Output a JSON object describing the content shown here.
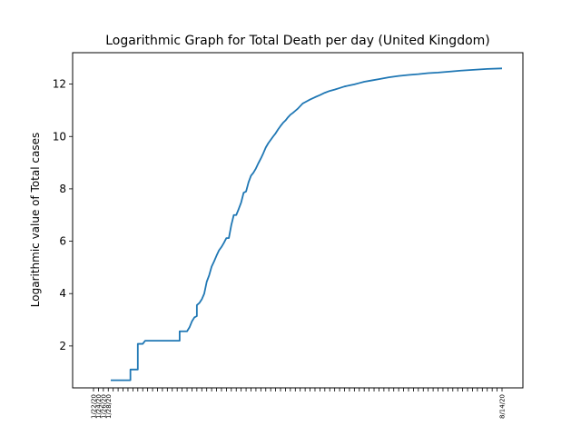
{
  "chart_data": {
    "type": "line",
    "title": "Logarithmic Graph for Total Death per day (United Kingdom)",
    "xlabel": "",
    "ylabel": "Logarithmic value of Total cases",
    "ylim": [
      0.4,
      13.2
    ],
    "yticks": [
      2,
      4,
      6,
      8,
      10,
      12
    ],
    "grid": false,
    "color": "#1f77b4",
    "x_start_index": 0,
    "x_end_index": 166,
    "x_tick_every": 2,
    "x_tick_labels_legible": [
      "1/22/20",
      "1/24/20",
      "1/26/20",
      "1/28/20",
      "8/14/20"
    ],
    "series": [
      {
        "points": [
          [
            7,
            0.69
          ],
          [
            15,
            0.69
          ],
          [
            15,
            1.1
          ],
          [
            18,
            1.1
          ],
          [
            18,
            2.08
          ],
          [
            20,
            2.08
          ],
          [
            21,
            2.2
          ],
          [
            35,
            2.2
          ],
          [
            35,
            2.56
          ],
          [
            38,
            2.56
          ],
          [
            39,
            2.71
          ],
          [
            40,
            2.94
          ],
          [
            41,
            3.09
          ],
          [
            42,
            3.14
          ],
          [
            42,
            3.56
          ],
          [
            43,
            3.64
          ],
          [
            44,
            3.78
          ],
          [
            45,
            4.0
          ],
          [
            46,
            4.45
          ],
          [
            47,
            4.7
          ],
          [
            48,
            5.03
          ],
          [
            49,
            5.23
          ],
          [
            50,
            5.45
          ],
          [
            51,
            5.65
          ],
          [
            52,
            5.78
          ],
          [
            53,
            5.94
          ],
          [
            54,
            6.12
          ],
          [
            55,
            6.12
          ],
          [
            56,
            6.62
          ],
          [
            57,
            7.0
          ],
          [
            58,
            7.0
          ],
          [
            59,
            7.23
          ],
          [
            60,
            7.48
          ],
          [
            61,
            7.85
          ],
          [
            62,
            7.9
          ],
          [
            63,
            8.25
          ],
          [
            64,
            8.5
          ],
          [
            65,
            8.62
          ],
          [
            66,
            8.78
          ],
          [
            67,
            8.98
          ],
          [
            68,
            9.16
          ],
          [
            69,
            9.36
          ],
          [
            70,
            9.58
          ],
          [
            71,
            9.74
          ],
          [
            72,
            9.87
          ],
          [
            73,
            10.0
          ],
          [
            74,
            10.12
          ],
          [
            75,
            10.27
          ],
          [
            76,
            10.4
          ],
          [
            77,
            10.52
          ],
          [
            78,
            10.61
          ],
          [
            79,
            10.73
          ],
          [
            80,
            10.83
          ],
          [
            81,
            10.9
          ],
          [
            82,
            10.98
          ],
          [
            83,
            11.06
          ],
          [
            84,
            11.16
          ],
          [
            85,
            11.26
          ],
          [
            86,
            11.31
          ],
          [
            88,
            11.41
          ],
          [
            90,
            11.5
          ],
          [
            92,
            11.58
          ],
          [
            94,
            11.67
          ],
          [
            96,
            11.74
          ],
          [
            98,
            11.79
          ],
          [
            100,
            11.85
          ],
          [
            102,
            11.91
          ],
          [
            104,
            11.95
          ],
          [
            106,
            11.99
          ],
          [
            108,
            12.04
          ],
          [
            110,
            12.09
          ],
          [
            113,
            12.14
          ],
          [
            116,
            12.19
          ],
          [
            120,
            12.26
          ],
          [
            124,
            12.31
          ],
          [
            128,
            12.35
          ],
          [
            132,
            12.38
          ],
          [
            136,
            12.42
          ],
          [
            140,
            12.44
          ],
          [
            145,
            12.48
          ],
          [
            150,
            12.52
          ],
          [
            155,
            12.55
          ],
          [
            160,
            12.58
          ],
          [
            166,
            12.6
          ]
        ]
      }
    ]
  }
}
